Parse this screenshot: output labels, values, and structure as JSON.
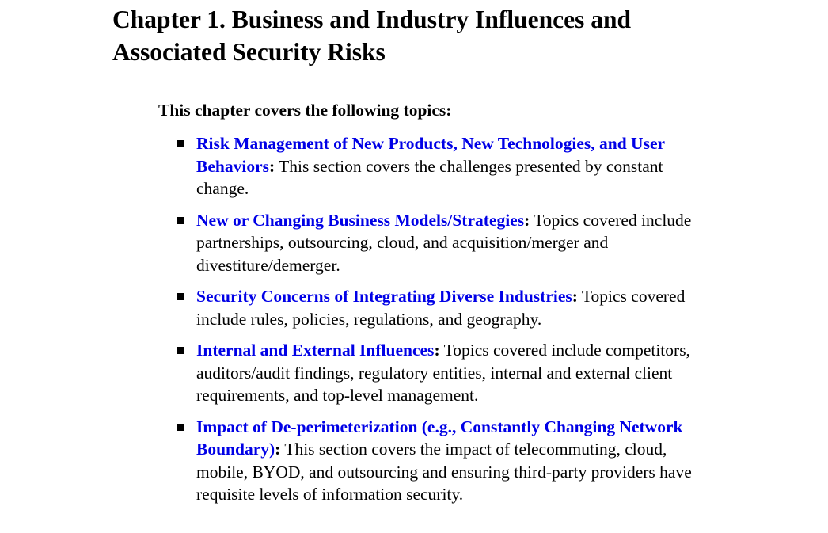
{
  "chapter": {
    "title": "Chapter 1. Business and Industry Influences and Associated Security Risks",
    "intro": "This chapter covers the following topics:"
  },
  "topics": [
    {
      "link_text": "Risk Management of New Products, New Technologies, and User Behaviors",
      "separator": ":",
      "description": " This section covers the challenges presented by constant change."
    },
    {
      "link_text": "New or Changing Business Models/Strategies",
      "separator": ":",
      "description": " Topics covered include partnerships, outsourcing, cloud, and acquisition/merger and divestiture/demerger."
    },
    {
      "link_text": "Security Concerns of Integrating Diverse Industries",
      "separator": ":",
      "description": " Topics covered include rules, policies, regulations, and geography."
    },
    {
      "link_text": "Internal and External Influences",
      "separator": ":",
      "description": " Topics covered include competitors, auditors/audit findings, regulatory entities, internal and external client requirements, and top-level management."
    },
    {
      "link_text": "Impact of De-perimeterization (e.g., Constantly Changing Network Boundary)",
      "separator": ":",
      "description": " This section covers the impact of telecommuting, cloud, mobile, BYOD, and outsourcing and ensuring third-party providers have requisite levels of information security."
    }
  ],
  "colors": {
    "link": "#0000e6",
    "text": "#000000",
    "background": "#ffffff"
  },
  "icons": {
    "bullet": "square-bullet-icon"
  }
}
